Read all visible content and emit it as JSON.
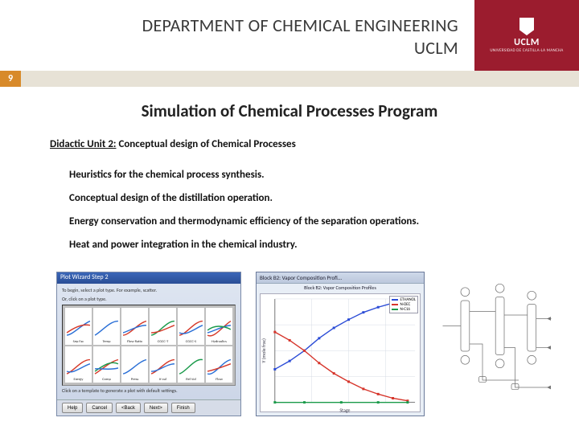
{
  "header": {
    "dept_line1": "DEPARTMENT OF CHEMICAL ENGINEERING",
    "dept_line2": "UCLM",
    "logo_text": "UCLM",
    "logo_sub": "UNIVERSIDAD DE CASTILLA-LA MANCHA"
  },
  "page_number": "9",
  "main_title": "Simulation of Chemical Processes Program",
  "unit": {
    "prefix": "Didactic Unit 2:",
    "rest": " Conceptual design of Chemical Processes"
  },
  "bullets": [
    "Heuristics for the chemical process synthesis.",
    "Conceptual design of the distillation operation.",
    "Energy conservation and thermodynamic efficiency of the separation operations.",
    "Heat and power integration in the chemical industry."
  ],
  "wizard": {
    "title": "Plot Wizard Step 2",
    "hint1": "To begin, select a plot type. For example, scatter.",
    "hint2": "Or, click on a plot type.",
    "foot_hint": "Click on a template to generate a plot with default settings.",
    "buttons": [
      "Help",
      "Cancel",
      "<Back",
      "Next>",
      "Finish"
    ],
    "thumbs": [
      {
        "label": "Sep Fac",
        "colors": [
          "#2a6fd6",
          "#d63a2a"
        ]
      },
      {
        "label": "Temp",
        "colors": [
          "#2a6fd6"
        ]
      },
      {
        "label": "Flow Ratio",
        "colors": [
          "#d63a2a",
          "#2a6fd6"
        ]
      },
      {
        "label": "CGCC-T",
        "colors": [
          "#1a9a4a",
          "#d63a2a"
        ]
      },
      {
        "label": "CGCC-S",
        "colors": [
          "#d63a2a",
          "#2a6fd6"
        ]
      },
      {
        "label": "Hydraulics",
        "colors": [
          "#d63a2a",
          "#2a6fd6",
          "#1a9a4a"
        ]
      },
      {
        "label": "Exergy",
        "colors": [
          "#d63a2a",
          "#2a6fd6"
        ]
      },
      {
        "label": "Comp",
        "colors": [
          "#d63a2a",
          "#1a9a4a",
          "#2a6fd6"
        ]
      },
      {
        "label": "Press",
        "colors": [
          "#2a6fd6"
        ]
      },
      {
        "label": "K-val",
        "colors": [
          "#d63a2a",
          "#2a6fd6"
        ]
      },
      {
        "label": "Rel Vol",
        "colors": [
          "#1a9a4a"
        ]
      },
      {
        "label": "Flow",
        "colors": [
          "#2a6fd6",
          "#d63a2a"
        ]
      }
    ]
  },
  "comp_chart": {
    "window_title": "Block B2: Vapor Composition Profi...",
    "subtitle": "Block B2: Vapor Composition Profiles",
    "x_label": "Stage",
    "y_label": "Y (mole frac)",
    "xlim": [
      1,
      20
    ],
    "ylim": [
      0,
      1
    ],
    "grid_color": "#d7dce5",
    "series": [
      {
        "name": "ETHANOL",
        "color": "#2a4bd6",
        "points": [
          [
            1,
            0.32
          ],
          [
            3,
            0.4
          ],
          [
            5,
            0.5
          ],
          [
            7,
            0.62
          ],
          [
            9,
            0.72
          ],
          [
            11,
            0.8
          ],
          [
            13,
            0.87
          ],
          [
            15,
            0.92
          ],
          [
            17,
            0.96
          ],
          [
            19,
            0.985
          ]
        ]
      },
      {
        "name": "N-DEC",
        "color": "#d6342a",
        "points": [
          [
            1,
            0.68
          ],
          [
            3,
            0.6
          ],
          [
            5,
            0.5
          ],
          [
            7,
            0.38
          ],
          [
            9,
            0.28
          ],
          [
            11,
            0.2
          ],
          [
            13,
            0.13
          ],
          [
            15,
            0.08
          ],
          [
            17,
            0.04
          ],
          [
            19,
            0.015
          ]
        ]
      },
      {
        "name": "N-C16",
        "color": "#1a9a4a",
        "points": [
          [
            1,
            0.0
          ],
          [
            5,
            0.0
          ],
          [
            10,
            0.0
          ],
          [
            15,
            0.0
          ],
          [
            19,
            0.0
          ]
        ]
      }
    ]
  },
  "flowsheet": {
    "stroke": "#6b6b6b",
    "fill": "#ffffff"
  },
  "colors": {
    "brand": "#9b1c2e",
    "accent": "#d88a2a",
    "bar_bg": "#e7e2d6"
  }
}
